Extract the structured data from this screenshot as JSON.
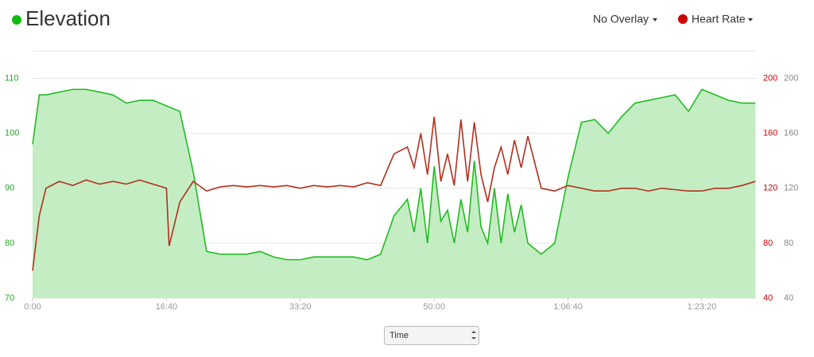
{
  "chart_data": {
    "type": "area",
    "title": "Elevation",
    "controls": {
      "overlay": "No Overlay",
      "metric": "Heart Rate",
      "x_axis_select": "Time"
    },
    "xlim": [
      0,
      5410
    ],
    "xticks": [
      {
        "value": 0,
        "label": "0:00"
      },
      {
        "value": 1000,
        "label": "16:40"
      },
      {
        "value": 2000,
        "label": "33:20"
      },
      {
        "value": 3000,
        "label": "50:00"
      },
      {
        "value": 4000,
        "label": "1:06:40"
      },
      {
        "value": 5000,
        "label": "1:23:20"
      }
    ],
    "ylim": [
      70,
      115
    ],
    "yticks": [
      70,
      80,
      90,
      100,
      110
    ],
    "y2lim": [
      40,
      220
    ],
    "y2ticks": [
      40,
      80,
      120,
      160,
      200
    ],
    "grid": true,
    "series": [
      {
        "name": "Elevation",
        "color": "#22bb22",
        "fill": "#c4edc4",
        "x": [
          0,
          50,
          100,
          200,
          300,
          400,
          500,
          600,
          700,
          800,
          900,
          1000,
          1100,
          1200,
          1300,
          1400,
          1500,
          1600,
          1700,
          1800,
          1900,
          2000,
          2100,
          2200,
          2300,
          2400,
          2500,
          2600,
          2700,
          2800,
          2850,
          2900,
          2950,
          3000,
          3050,
          3100,
          3150,
          3200,
          3250,
          3300,
          3350,
          3400,
          3450,
          3500,
          3550,
          3600,
          3650,
          3700,
          3800,
          3900,
          4000,
          4100,
          4200,
          4300,
          4400,
          4500,
          4600,
          4700,
          4800,
          4900,
          5000,
          5100,
          5200,
          5300,
          5400
        ],
        "values": [
          98,
          107,
          107,
          107.5,
          108,
          108,
          107.5,
          107,
          105.5,
          106,
          106,
          105,
          104,
          93,
          78.5,
          78,
          78,
          78,
          78.5,
          77.5,
          77,
          77,
          77.5,
          77.5,
          77.5,
          77.5,
          77,
          78,
          85,
          88,
          82,
          90,
          80,
          94,
          84,
          86,
          80,
          88,
          82,
          95,
          83,
          80,
          90,
          80,
          89,
          82,
          87,
          80,
          78,
          80,
          92,
          102,
          102.5,
          100,
          103,
          105.5,
          106,
          106.5,
          107,
          104,
          108,
          107,
          106,
          105.5,
          105.5
        ]
      },
      {
        "name": "Heart Rate",
        "color": "#b0301c",
        "axis": "y2",
        "x": [
          0,
          50,
          100,
          200,
          300,
          400,
          500,
          600,
          700,
          800,
          900,
          1000,
          1020,
          1100,
          1200,
          1300,
          1400,
          1500,
          1600,
          1700,
          1800,
          1900,
          2000,
          2100,
          2200,
          2300,
          2400,
          2500,
          2600,
          2700,
          2800,
          2850,
          2900,
          2950,
          3000,
          3050,
          3100,
          3150,
          3200,
          3250,
          3300,
          3350,
          3400,
          3450,
          3500,
          3550,
          3600,
          3650,
          3700,
          3800,
          3900,
          4000,
          4100,
          4200,
          4300,
          4400,
          4500,
          4600,
          4700,
          4800,
          4900,
          5000,
          5100,
          5200,
          5300,
          5400
        ],
        "values": [
          60,
          100,
          120,
          125,
          122,
          126,
          123,
          125,
          123,
          126,
          123,
          120,
          78,
          110,
          125,
          118,
          121,
          122,
          121,
          122,
          121,
          122,
          120,
          122,
          121,
          122,
          121,
          124,
          122,
          145,
          150,
          135,
          160,
          130,
          172,
          125,
          145,
          122,
          170,
          125,
          168,
          130,
          110,
          135,
          150,
          130,
          155,
          135,
          158,
          120,
          118,
          122,
          120,
          118,
          118,
          120,
          120,
          118,
          120,
          119,
          118,
          118,
          120,
          120,
          122,
          125
        ]
      }
    ]
  }
}
